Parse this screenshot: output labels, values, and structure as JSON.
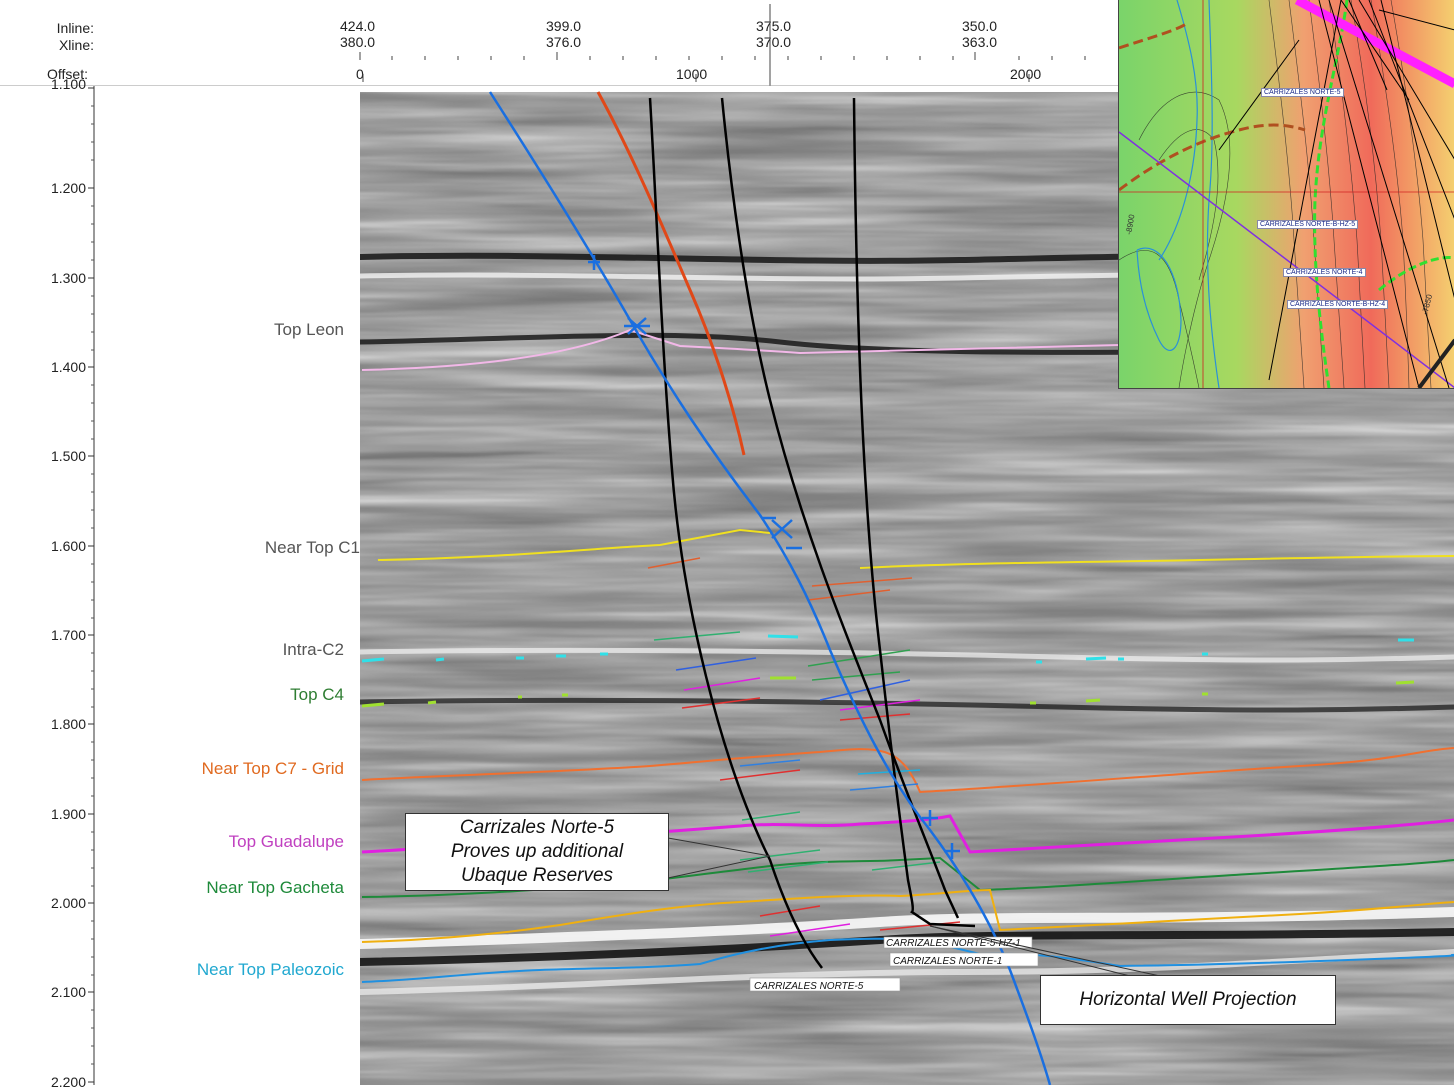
{
  "header": {
    "row_labels": {
      "inline": "Inline:",
      "xline": "Xline:",
      "offset": "Offset:"
    },
    "ticks": [
      {
        "inline": "424.0",
        "xline": "380.0"
      },
      {
        "inline": "399.0",
        "xline": "376.0"
      },
      {
        "inline": "375.0",
        "xline": "370.0"
      },
      {
        "inline": "350.0",
        "xline": "363.0"
      }
    ],
    "offset_ticks": [
      "0",
      "1000",
      "2000"
    ]
  },
  "time_axis": {
    "labels": [
      "1.100",
      "1.200",
      "1.300",
      "1.400",
      "1.500",
      "1.600",
      "1.700",
      "1.800",
      "1.900",
      "2.000",
      "2.100",
      "2.200"
    ]
  },
  "horizons": [
    {
      "name": "Top Leon",
      "color": "#555555"
    },
    {
      "name": "Near Top C1",
      "color": "#555555"
    },
    {
      "name": "Intra-C2",
      "color": "#555555"
    },
    {
      "name": "Top C4",
      "color": "#2e7d32"
    },
    {
      "name": "Near Top C7 - Grid",
      "color": "#e06a20"
    },
    {
      "name": "Top Guadalupe",
      "color": "#c040c0"
    },
    {
      "name": "Near Top Gacheta",
      "color": "#1e8a3a"
    },
    {
      "name": "Near Top Paleozoic",
      "color": "#20a8d0"
    }
  ],
  "horizon_line_colors": {
    "top_leon": "#f2b8e8",
    "near_top_c1": "#f0e020",
    "intra_c2": "#30e0e8",
    "top_c4": "#a0e030",
    "near_top_c7": "#f07030",
    "top_guadalupe": "#e020e0",
    "near_top_gacheta": "#1e8a3a",
    "yellow_deep": "#f0b010",
    "paleozoic": "#2090e0"
  },
  "well_labels": {
    "norte5": "CARRIZALES NORTE-5",
    "hz1": "CARRIZALES NORTE-5-HZ-1",
    "norte1": "CARRIZALES NORTE-1"
  },
  "callouts": {
    "carrizales_line1": "Carrizales Norte-5",
    "carrizales_line2": "Proves up additional",
    "carrizales_line3": "Ubaque Reserves",
    "horizontal": "Horizontal Well Projection"
  },
  "inset_map": {
    "labels": [
      "CARRIZALES NORTE-5",
      "CARRIZALES NORTE-B-HZ-5",
      "CARRIZALES NORTE-4",
      "CARRIZALES NORTE-B-HZ-4"
    ],
    "contour_labels": [
      "-7850",
      "-8900"
    ]
  }
}
